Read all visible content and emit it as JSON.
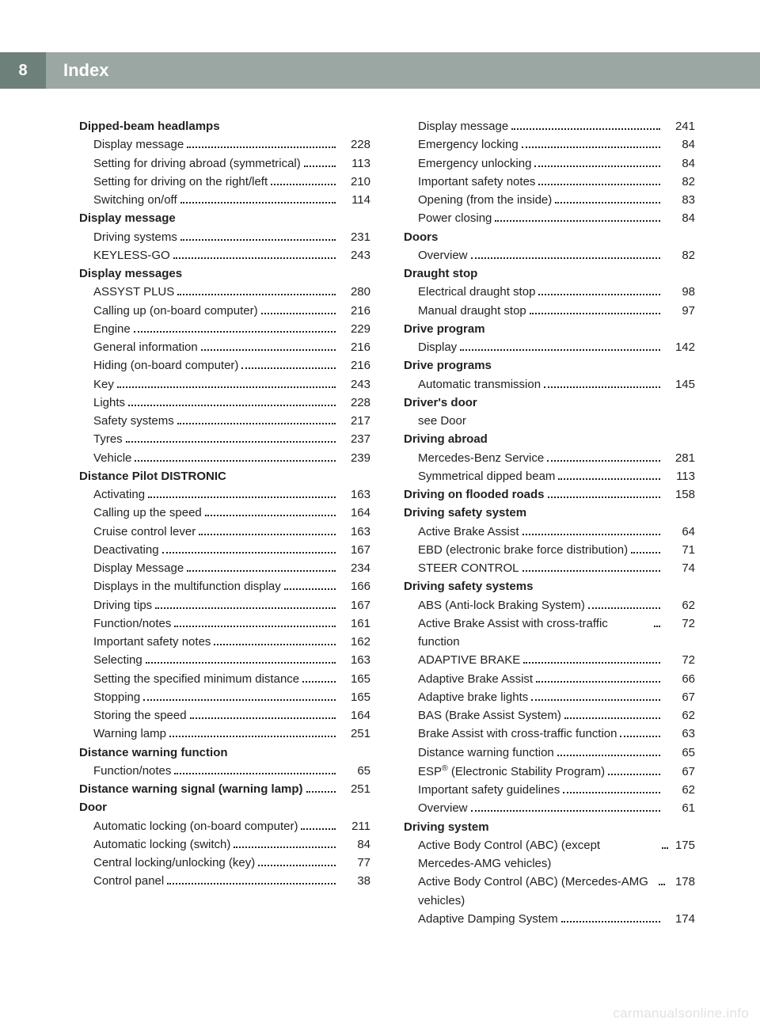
{
  "header": {
    "page_number": "8",
    "title": "Index",
    "bar_bg": "#9aa7a2",
    "num_bg": "#6d807a",
    "text_color": "#ffffff"
  },
  "watermark": "carmanualsonline.info",
  "columns": [
    [
      {
        "type": "heading",
        "label": "Dipped-beam headlamps"
      },
      {
        "type": "row",
        "label": "Display message",
        "page": "228"
      },
      {
        "type": "row",
        "label": "Setting for driving abroad (symmetrical)",
        "page": "113"
      },
      {
        "type": "row",
        "label": "Setting for driving on the right/left",
        "page": "210"
      },
      {
        "type": "row",
        "label": "Switching on/off",
        "page": "114"
      },
      {
        "type": "heading",
        "label": "Display message"
      },
      {
        "type": "row",
        "label": "Driving systems",
        "page": "231"
      },
      {
        "type": "row",
        "label": "KEYLESS-GO",
        "page": "243"
      },
      {
        "type": "heading",
        "label": "Display messages"
      },
      {
        "type": "row",
        "label": "ASSYST PLUS",
        "page": "280"
      },
      {
        "type": "row",
        "label": "Calling up (on-board computer)",
        "page": "216"
      },
      {
        "type": "row",
        "label": "Engine",
        "page": "229"
      },
      {
        "type": "row",
        "label": "General information",
        "page": "216"
      },
      {
        "type": "row",
        "label": "Hiding (on-board computer)",
        "page": "216"
      },
      {
        "type": "row",
        "label": "Key",
        "page": "243"
      },
      {
        "type": "row",
        "label": "Lights",
        "page": "228"
      },
      {
        "type": "row",
        "label": "Safety systems",
        "page": "217"
      },
      {
        "type": "row",
        "label": "Tyres",
        "page": "237"
      },
      {
        "type": "row",
        "label": "Vehicle",
        "page": "239"
      },
      {
        "type": "heading",
        "label": "Distance Pilot DISTRONIC"
      },
      {
        "type": "row",
        "label": "Activating",
        "page": "163"
      },
      {
        "type": "row",
        "label": "Calling up the speed",
        "page": "164"
      },
      {
        "type": "row",
        "label": "Cruise control lever",
        "page": "163"
      },
      {
        "type": "row",
        "label": "Deactivating",
        "page": "167"
      },
      {
        "type": "row",
        "label": "Display Message",
        "page": "234"
      },
      {
        "type": "row",
        "label": "Displays in the multifunction display",
        "page": "166"
      },
      {
        "type": "row",
        "label": "Driving tips",
        "page": "167"
      },
      {
        "type": "row",
        "label": "Function/notes",
        "page": "161"
      },
      {
        "type": "row",
        "label": "Important safety notes",
        "page": "162"
      },
      {
        "type": "row",
        "label": "Selecting",
        "page": "163"
      },
      {
        "type": "row",
        "label": "Setting the specified minimum distance",
        "page": "165"
      },
      {
        "type": "row",
        "label": "Stopping",
        "page": "165"
      },
      {
        "type": "row",
        "label": "Storing the speed",
        "page": "164"
      },
      {
        "type": "row",
        "label": "Warning lamp",
        "page": "251"
      },
      {
        "type": "heading",
        "label": "Distance warning function"
      },
      {
        "type": "row",
        "label": "Function/notes",
        "page": "65"
      },
      {
        "type": "heading",
        "label": "Distance warning signal (warning lamp)",
        "page": "251"
      },
      {
        "type": "heading",
        "label": "Door"
      },
      {
        "type": "row",
        "label": "Automatic locking (on-board computer)",
        "page": "211"
      },
      {
        "type": "row",
        "label": "Automatic locking (switch)",
        "page": "84"
      },
      {
        "type": "row",
        "label": "Central locking/unlocking (key)",
        "page": "77"
      },
      {
        "type": "row",
        "label": "Control panel",
        "page": "38"
      }
    ],
    [
      {
        "type": "row",
        "label": "Display message",
        "page": "241"
      },
      {
        "type": "row",
        "label": "Emergency locking",
        "page": "84"
      },
      {
        "type": "row",
        "label": "Emergency unlocking",
        "page": "84"
      },
      {
        "type": "row",
        "label": "Important safety notes",
        "page": "82"
      },
      {
        "type": "row",
        "label": "Opening (from the inside)",
        "page": "83"
      },
      {
        "type": "row",
        "label": "Power closing",
        "page": "84"
      },
      {
        "type": "heading",
        "label": "Doors"
      },
      {
        "type": "row",
        "label": "Overview",
        "page": "82"
      },
      {
        "type": "heading",
        "label": "Draught stop"
      },
      {
        "type": "row",
        "label": "Electrical draught stop",
        "page": "98"
      },
      {
        "type": "row",
        "label": "Manual draught stop",
        "page": "97"
      },
      {
        "type": "heading",
        "label": "Drive program"
      },
      {
        "type": "row",
        "label": "Display",
        "page": "142"
      },
      {
        "type": "heading",
        "label": "Drive programs"
      },
      {
        "type": "row",
        "label": "Automatic transmission",
        "page": "145"
      },
      {
        "type": "heading",
        "label": "Driver's door"
      },
      {
        "type": "row",
        "label": "see Door"
      },
      {
        "type": "heading",
        "label": "Driving abroad"
      },
      {
        "type": "row",
        "label": "Mercedes-Benz Service",
        "page": "281"
      },
      {
        "type": "row",
        "label": "Symmetrical dipped beam",
        "page": "113"
      },
      {
        "type": "heading",
        "label": "Driving on flooded roads",
        "page": "158"
      },
      {
        "type": "heading",
        "label": "Driving safety system"
      },
      {
        "type": "row",
        "label": "Active Brake Assist",
        "page": "64"
      },
      {
        "type": "row",
        "label": "EBD (electronic brake force distribution)",
        "page": "71"
      },
      {
        "type": "row",
        "label": "STEER CONTROL",
        "page": "74"
      },
      {
        "type": "heading",
        "label": "Driving safety systems"
      },
      {
        "type": "row",
        "label": "ABS (Anti-lock Braking System)",
        "page": "62"
      },
      {
        "type": "row",
        "label": "Active Brake Assist with cross-traffic function",
        "page": "72"
      },
      {
        "type": "row",
        "label": "ADAPTIVE BRAKE",
        "page": "72"
      },
      {
        "type": "row",
        "label": "Adaptive Brake Assist",
        "page": "66"
      },
      {
        "type": "row",
        "label": "Adaptive brake lights",
        "page": "67"
      },
      {
        "type": "row",
        "label": "BAS (Brake Assist System)",
        "page": "62"
      },
      {
        "type": "row",
        "label": "Brake Assist with cross-traffic function",
        "page": "63"
      },
      {
        "type": "row",
        "label": "Distance warning function",
        "page": "65"
      },
      {
        "type": "row",
        "label": "ESP<sup>®</sup> (Electronic Stability Program)",
        "page": "67",
        "html": true
      },
      {
        "type": "row",
        "label": "Important safety guidelines",
        "page": "62"
      },
      {
        "type": "row",
        "label": "Overview",
        "page": "61"
      },
      {
        "type": "heading",
        "label": "Driving system"
      },
      {
        "type": "row",
        "label": "Active Body Control (ABC) (except Mercedes-AMG vehicles)",
        "page": "175"
      },
      {
        "type": "row",
        "label": "Active Body Control (ABC) (Mercedes-AMG vehicles)",
        "page": "178"
      },
      {
        "type": "row",
        "label": "Adaptive Damping System",
        "page": "174"
      }
    ]
  ]
}
